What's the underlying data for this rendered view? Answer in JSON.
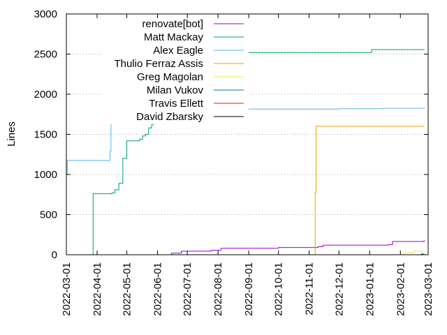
{
  "chart_data": {
    "type": "line",
    "title": "",
    "xlabel": "",
    "ylabel": "Lines",
    "xlim": [
      "2022-03-01",
      "2023-03-01"
    ],
    "ylim": [
      0,
      3000
    ],
    "grid": "horizontal dotted",
    "legend_position": "top-left",
    "x_ticks": [
      "2022-03-01",
      "2022-04-01",
      "2022-05-01",
      "2022-06-01",
      "2022-07-01",
      "2022-08-01",
      "2022-09-01",
      "2022-10-01",
      "2022-11-01",
      "2022-12-01",
      "2023-01-01",
      "2023-02-01",
      "2023-03-01"
    ],
    "y_ticks": [
      0,
      500,
      1000,
      1500,
      2000,
      2500,
      3000
    ],
    "series": [
      {
        "name": "renovate[bot]",
        "color": "#9400d3",
        "points": [
          [
            "2022-06-10",
            0
          ],
          [
            "2022-06-15",
            20
          ],
          [
            "2022-06-25",
            45
          ],
          [
            "2022-07-25",
            55
          ],
          [
            "2022-08-04",
            80
          ],
          [
            "2022-10-01",
            90
          ],
          [
            "2022-11-10",
            100
          ],
          [
            "2022-11-15",
            120
          ],
          [
            "2023-01-20",
            125
          ],
          [
            "2023-01-24",
            165
          ],
          [
            "2023-02-25",
            180
          ]
        ]
      },
      {
        "name": "Matt Mackay",
        "color": "#009e73",
        "points": [
          [
            "2022-03-02",
            0
          ],
          [
            "2022-03-28",
            760
          ],
          [
            "2022-04-16",
            770
          ],
          [
            "2022-04-19",
            810
          ],
          [
            "2022-04-23",
            890
          ],
          [
            "2022-04-27",
            1200
          ],
          [
            "2022-05-01",
            1420
          ],
          [
            "2022-05-14",
            1440
          ],
          [
            "2022-05-17",
            1480
          ],
          [
            "2022-05-20",
            1500
          ],
          [
            "2022-05-23",
            1580
          ],
          [
            "2022-05-26",
            1620
          ],
          [
            "2022-05-28",
            1700
          ],
          [
            "2022-06-01",
            2000
          ],
          [
            "2022-06-05",
            2400
          ],
          [
            "2022-06-08",
            2510
          ],
          [
            "2022-07-15",
            2520
          ],
          [
            "2023-01-01",
            2520
          ],
          [
            "2023-01-03",
            2555
          ],
          [
            "2023-02-25",
            2560
          ]
        ]
      },
      {
        "name": "Alex Eagle",
        "color": "#56b4e9",
        "points": [
          [
            "2022-03-01",
            1000
          ],
          [
            "2022-03-02",
            1175
          ],
          [
            "2022-03-28",
            1175
          ],
          [
            "2022-04-14",
            1290
          ],
          [
            "2022-04-15",
            1800
          ],
          [
            "2022-05-25",
            1800
          ],
          [
            "2022-06-01",
            1810
          ],
          [
            "2022-09-01",
            1815
          ],
          [
            "2022-12-01",
            1820
          ],
          [
            "2023-01-15",
            1825
          ],
          [
            "2023-02-25",
            1835
          ]
        ]
      },
      {
        "name": "Thulio Ferraz Assis",
        "color": "#e69f00",
        "points": [
          [
            "2022-11-06",
            0
          ],
          [
            "2022-11-07",
            780
          ],
          [
            "2022-11-08",
            1600
          ],
          [
            "2023-02-25",
            1600
          ]
        ]
      },
      {
        "name": "Greg Magolan",
        "color": "#f0e442",
        "points": [
          [
            "2023-01-25",
            0
          ],
          [
            "2023-02-05",
            25
          ],
          [
            "2023-02-15",
            45
          ],
          [
            "2023-02-25",
            50
          ]
        ]
      },
      {
        "name": "Milan Vukov",
        "color": "#0072b2",
        "points": [
          [
            "2023-02-15",
            0
          ],
          [
            "2023-02-22",
            10
          ],
          [
            "2023-02-25",
            12
          ]
        ]
      },
      {
        "name": "Travis Ellett",
        "color": "#e51e10",
        "points": [
          [
            "2023-02-18",
            0
          ],
          [
            "2023-02-24",
            5
          ]
        ]
      },
      {
        "name": "David Zbarsky",
        "color": "#000000",
        "points": [
          [
            "2023-02-22",
            0
          ],
          [
            "2023-02-25",
            3
          ]
        ]
      }
    ]
  }
}
